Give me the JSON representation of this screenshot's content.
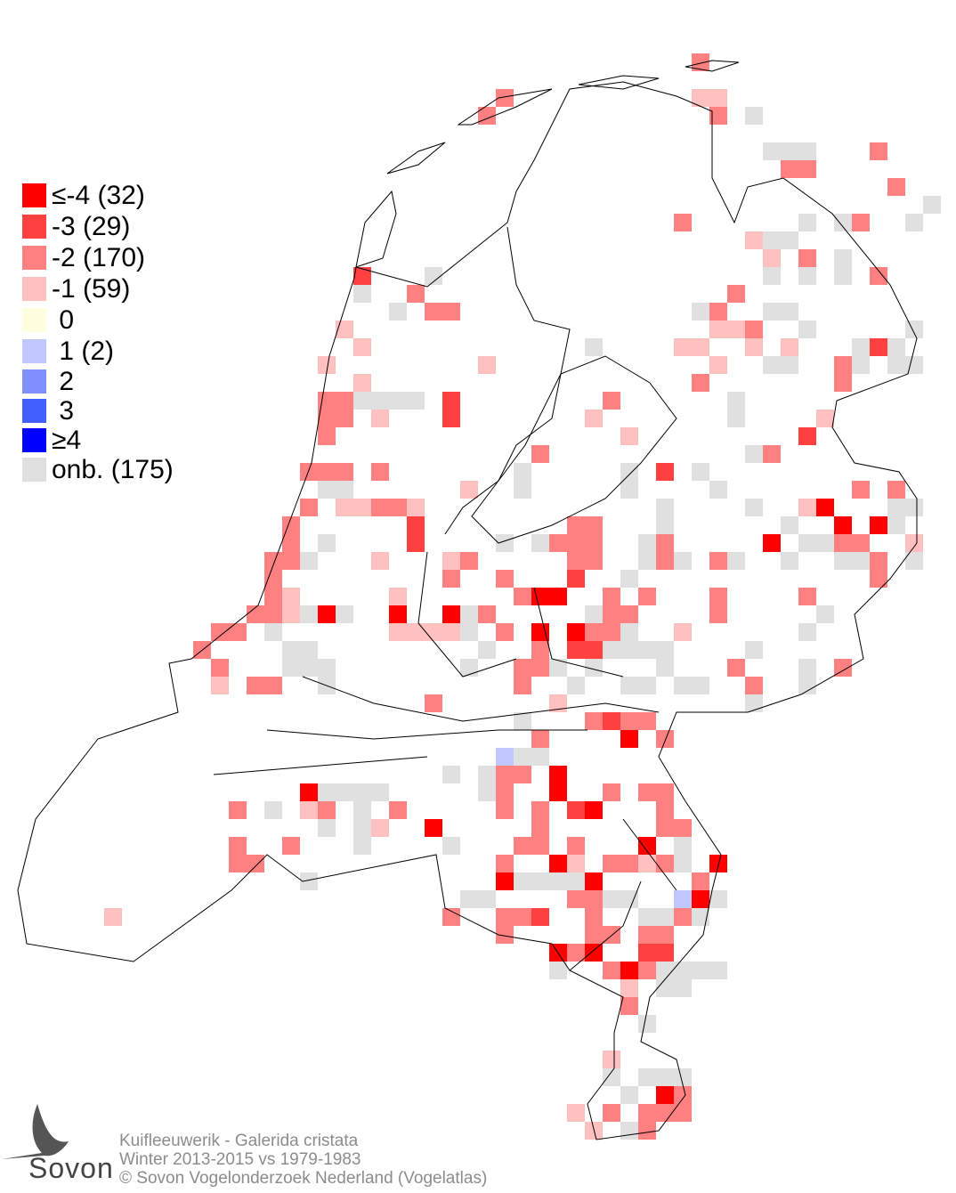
{
  "legend": {
    "items": [
      {
        "label": "≤-4 (32)",
        "color": "#ff0000"
      },
      {
        "label": "-3 (29)",
        "color": "#ff4040"
      },
      {
        "label": "-2 (170)",
        "color": "#ff8080"
      },
      {
        "label": "-1 (59)",
        "color": "#ffc0c0"
      },
      {
        "label": " 0",
        "color": "#ffffe0"
      },
      {
        "label": " 1 (2)",
        "color": "#c0c8ff"
      },
      {
        "label": " 2",
        "color": "#8090ff"
      },
      {
        "label": " 3",
        "color": "#4060ff"
      },
      {
        "label": "≥4",
        "color": "#0000ff"
      },
      {
        "label": "onb. (175)",
        "color": "#e0e0e0"
      }
    ]
  },
  "caption": {
    "line1": "Kuifleeuwerik - Galerida cristata",
    "line2": "Winter 2013-2015 vs 1979-1983",
    "line3": "© Sovon Vogelonderzoek Nederland (Vogelatlas)"
  },
  "logo": {
    "text": "Sovon"
  }
}
